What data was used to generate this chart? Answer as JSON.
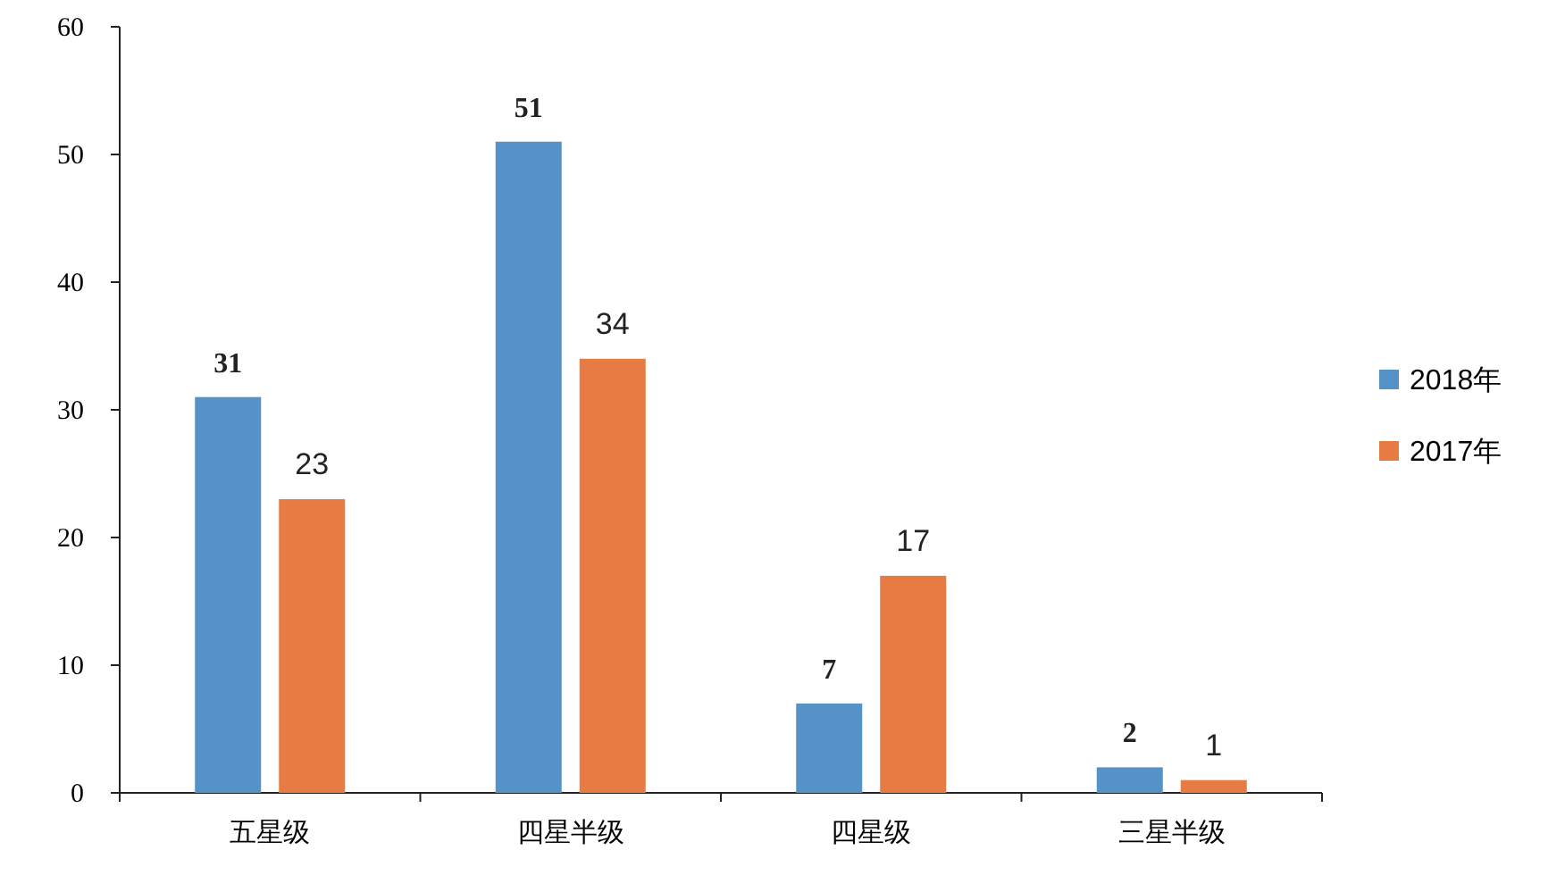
{
  "chart_data": {
    "type": "bar",
    "categories": [
      "五星级",
      "四星半级",
      "四星级",
      "三星半级"
    ],
    "series": [
      {
        "name": "2018年",
        "color": "#5592c8",
        "values": [
          31,
          51,
          7,
          2
        ]
      },
      {
        "name": "2017年",
        "color": "#e67c43",
        "values": [
          23,
          34,
          17,
          1
        ]
      }
    ],
    "ylim": [
      0,
      60
    ],
    "yticks": [
      0,
      10,
      20,
      30,
      40,
      50,
      60
    ],
    "grid": false,
    "legend": "right",
    "data_labels": true
  }
}
